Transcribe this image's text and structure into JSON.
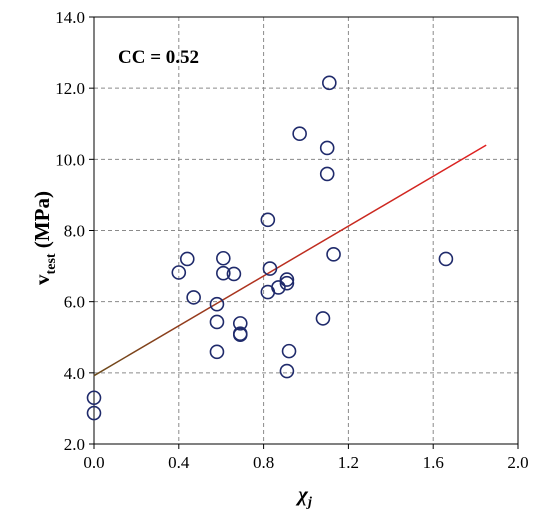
{
  "chart_data": {
    "type": "scatter",
    "title": "",
    "annotation": "CC = 0.52",
    "ylabel": {
      "main": "v",
      "sub": "test",
      "unit": " (MPa)"
    },
    "xlabel": {
      "main": "χ",
      "sub": "j"
    },
    "xlim": [
      0.0,
      2.0
    ],
    "ylim": [
      2.0,
      14.0
    ],
    "xticks": [
      0.0,
      0.4,
      0.8,
      1.2,
      1.6,
      2.0
    ],
    "xtick_labels": [
      "0.0",
      "0.4",
      "0.8",
      "1.2",
      "1.6",
      "2.0"
    ],
    "yticks": [
      2.0,
      4.0,
      6.0,
      8.0,
      10.0,
      12.0,
      14.0
    ],
    "ytick_labels": [
      "2.0",
      "4.0",
      "6.0",
      "8.0",
      "10.0",
      "12.0",
      "14.0"
    ],
    "grid": true,
    "points": [
      [
        0.0,
        3.3
      ],
      [
        0.0,
        2.87
      ],
      [
        0.4,
        6.82
      ],
      [
        0.44,
        7.2
      ],
      [
        0.47,
        6.12
      ],
      [
        0.58,
        5.93
      ],
      [
        0.58,
        5.43
      ],
      [
        0.58,
        4.59
      ],
      [
        0.61,
        7.22
      ],
      [
        0.61,
        6.8
      ],
      [
        0.66,
        6.78
      ],
      [
        0.69,
        5.39
      ],
      [
        0.69,
        5.1
      ],
      [
        0.69,
        5.07
      ],
      [
        0.82,
        8.3
      ],
      [
        0.83,
        6.93
      ],
      [
        0.82,
        6.27
      ],
      [
        0.87,
        6.4
      ],
      [
        0.91,
        6.62
      ],
      [
        0.91,
        6.52
      ],
      [
        0.91,
        4.05
      ],
      [
        0.92,
        4.61
      ],
      [
        0.97,
        10.72
      ],
      [
        1.08,
        5.53
      ],
      [
        1.1,
        10.32
      ],
      [
        1.1,
        9.59
      ],
      [
        1.11,
        12.15
      ],
      [
        1.13,
        7.33
      ],
      [
        1.66,
        7.2
      ]
    ],
    "marker_color": "#1f2a6b",
    "trendline": {
      "x": [
        0.0,
        1.85
      ],
      "y": [
        3.92,
        10.4
      ],
      "color_start": "#6b4a1a",
      "color_end": "#e02020"
    }
  }
}
